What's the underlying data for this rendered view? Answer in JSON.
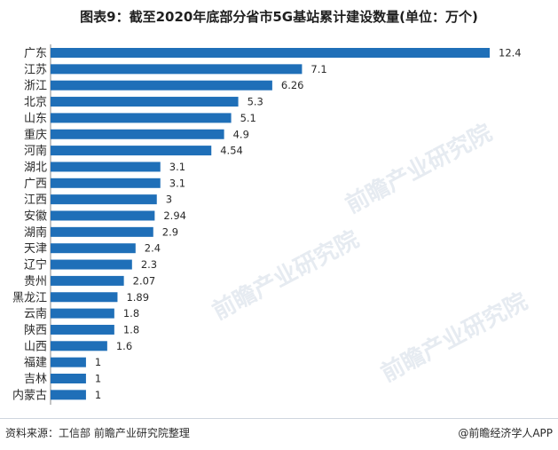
{
  "title": "图表9：截至2020年底部分省市5G基站累计建设数量(单位：万个)",
  "watermark": "前瞻产业研究院",
  "footer": {
    "source": "资料来源：工信部 前瞻产业研究院整理",
    "brand": "@前瞻经济学人APP"
  },
  "colors": {
    "bar": "#1f6fb8"
  },
  "chart_data": {
    "type": "bar",
    "orientation": "horizontal",
    "title": "图表9：截至2020年底部分省市5G基站累计建设数量(单位：万个)",
    "xlabel": "",
    "ylabel": "",
    "categories": [
      "广东",
      "江苏",
      "浙江",
      "北京",
      "山东",
      "重庆",
      "河南",
      "湖北",
      "广西",
      "江西",
      "安徽",
      "湖南",
      "天津",
      "辽宁",
      "贵州",
      "黑龙江",
      "云南",
      "陕西",
      "山西",
      "福建",
      "吉林",
      "内蒙古"
    ],
    "values": [
      12.4,
      7.1,
      6.26,
      5.3,
      5.1,
      4.9,
      4.54,
      3.1,
      3.1,
      3,
      2.94,
      2.9,
      2.4,
      2.3,
      2.07,
      1.89,
      1.8,
      1.8,
      1.6,
      1,
      1,
      1
    ],
    "value_labels": [
      "12.4",
      "7.1",
      "6.26",
      "5.3",
      "5.1",
      "4.9",
      "4.54",
      "3.1",
      "3.1",
      "3",
      "2.94",
      "2.9",
      "2.4",
      "2.3",
      "2.07",
      "1.89",
      "1.8",
      "1.8",
      "1.6",
      "1",
      "1",
      "1"
    ],
    "xlim": [
      0,
      12.4
    ],
    "grid": false,
    "legend": "none"
  }
}
